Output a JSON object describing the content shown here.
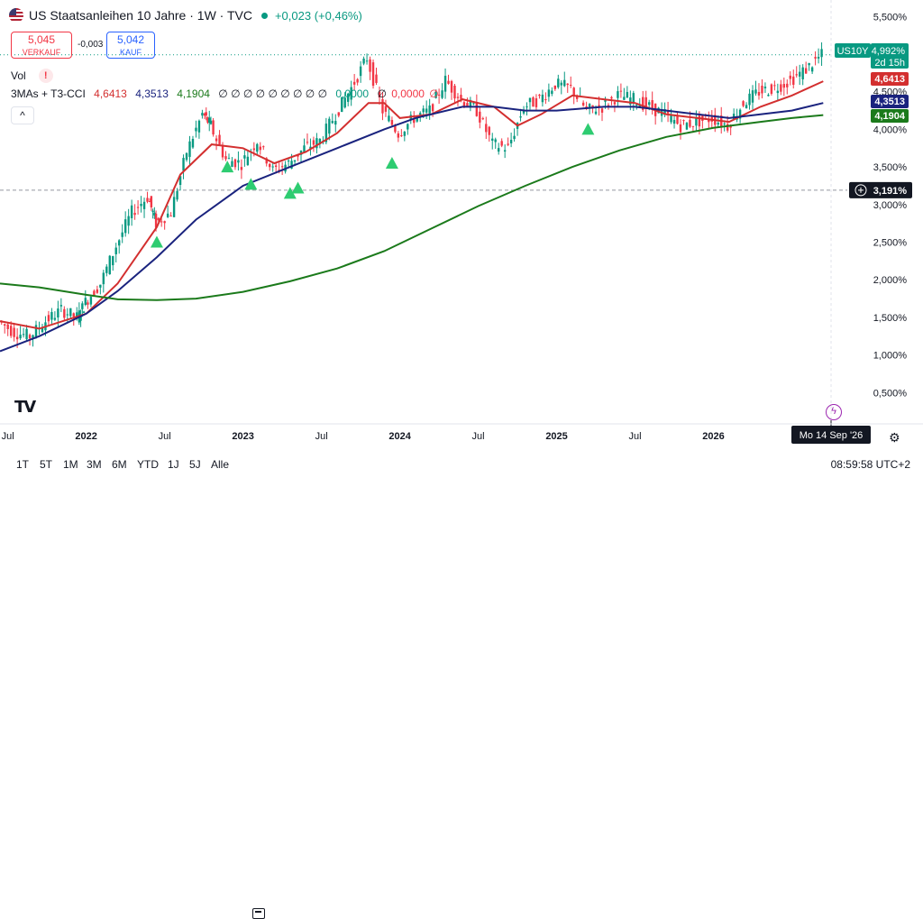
{
  "header": {
    "title": "US Staatsanleihen 10 Jahre · 1W · TVC",
    "change": "+0,023 (+0,46%)",
    "sell_value": "5,045",
    "sell_label": "VERKAUF",
    "spread": "-0,003",
    "buy_value": "5,042",
    "buy_label": "KAUF"
  },
  "volume": {
    "label": "Vol",
    "warning": "!"
  },
  "indicator": {
    "name": "3MAs + T3-CCI",
    "v1": "4,6413",
    "v2": "4,3513",
    "v3": "4,1904",
    "empties": "∅ ∅ ∅ ∅ ∅ ∅ ∅ ∅ ∅",
    "z1": "0,0000",
    "z2": "∅",
    "z3": "0,0000",
    "z4": "∅",
    "collapse": "^"
  },
  "badges": {
    "symbol": "US10Y",
    "price": "4,992%",
    "countdown": "2d 15h",
    "ma_red": "4,6413",
    "ma_blue": "4,3513",
    "ma_green": "4,1904",
    "crosshair": "3,191%",
    "date": "Mo 14 Sep '26"
  },
  "bottom": {
    "ranges": [
      "1T",
      "5T",
      "1M",
      "3M",
      "6M",
      "YTD",
      "1J",
      "5J",
      "Alle"
    ],
    "clock": "08:59:58 UTC+2"
  },
  "colors": {
    "up": "#089981",
    "down": "#f23645",
    "ma_red": "#d32f2f",
    "ma_blue": "#1a237e",
    "ma_green": "#1b7a1b",
    "marker": "#2ecc71"
  },
  "chart_data": {
    "type": "line",
    "title": "US Staatsanleihen 10 Jahre · 1W · TVC",
    "xlabel": "",
    "ylabel": "",
    "y_ticks": [
      "5,500%",
      "5,000%",
      "4,500%",
      "4,000%",
      "3,500%",
      "3,000%",
      "2,500%",
      "2,000%",
      "1,500%",
      "1,000%",
      "0,500%"
    ],
    "ylim": [
      0.3,
      5.6
    ],
    "x_ticks": [
      "Jul",
      "2022",
      "Jul",
      "2023",
      "Jul",
      "2024",
      "Jul",
      "2025",
      "Jul",
      "2026"
    ],
    "xlim": [
      2021.45,
      2026.75
    ],
    "last_price": 4.992,
    "crosshair_y": 3.191,
    "series": [
      {
        "name": "US10Y",
        "x": [
          2021.45,
          2021.55,
          2021.65,
          2021.75,
          2021.85,
          2021.95,
          2022.0,
          2022.1,
          2022.2,
          2022.3,
          2022.4,
          2022.45,
          2022.55,
          2022.65,
          2022.75,
          2022.8,
          2022.9,
          2023.0,
          2023.1,
          2023.2,
          2023.3,
          2023.4,
          2023.5,
          2023.6,
          2023.7,
          2023.8,
          2023.9,
          2024.0,
          2024.1,
          2024.2,
          2024.3,
          2024.4,
          2024.5,
          2024.6,
          2024.7,
          2024.8,
          2024.9,
          2025.0,
          2025.1,
          2025.2,
          2025.3,
          2025.4,
          2025.5,
          2025.6,
          2025.7,
          2025.8,
          2025.9,
          2026.0,
          2026.1,
          2026.2,
          2026.3,
          2026.4,
          2026.5,
          2026.6,
          2026.7
        ],
        "values": [
          1.45,
          1.3,
          1.25,
          1.45,
          1.6,
          1.5,
          1.7,
          1.95,
          2.45,
          2.9,
          3.1,
          2.75,
          2.9,
          3.7,
          4.2,
          4.05,
          3.6,
          3.55,
          3.85,
          3.45,
          3.55,
          3.75,
          3.85,
          4.2,
          4.55,
          4.95,
          4.25,
          3.95,
          4.15,
          4.25,
          4.65,
          4.4,
          4.25,
          3.8,
          3.75,
          4.3,
          4.4,
          4.6,
          4.55,
          4.25,
          4.3,
          4.45,
          4.4,
          4.3,
          4.2,
          4.05,
          4.1,
          4.15,
          4.05,
          4.35,
          4.5,
          4.55,
          4.65,
          4.8,
          4.99
        ]
      },
      {
        "name": "4,6413",
        "x": [
          2021.45,
          2021.7,
          2022.0,
          2022.2,
          2022.45,
          2022.6,
          2022.8,
          2023.0,
          2023.2,
          2023.4,
          2023.6,
          2023.8,
          2023.9,
          2024.0,
          2024.2,
          2024.4,
          2024.6,
          2024.75,
          2024.9,
          2025.1,
          2025.3,
          2025.5,
          2025.7,
          2025.9,
          2026.1,
          2026.3,
          2026.5,
          2026.7
        ],
        "values": [
          1.45,
          1.35,
          1.55,
          1.95,
          2.7,
          3.4,
          3.8,
          3.75,
          3.55,
          3.7,
          3.95,
          4.35,
          4.35,
          4.15,
          4.2,
          4.4,
          4.3,
          4.05,
          4.2,
          4.45,
          4.4,
          4.35,
          4.2,
          4.15,
          4.1,
          4.3,
          4.45,
          4.64
        ]
      },
      {
        "name": "4,3513",
        "x": [
          2021.45,
          2021.7,
          2022.0,
          2022.2,
          2022.45,
          2022.7,
          2023.0,
          2023.3,
          2023.6,
          2023.9,
          2024.1,
          2024.4,
          2024.6,
          2024.8,
          2025.0,
          2025.3,
          2025.5,
          2025.7,
          2025.9,
          2026.1,
          2026.3,
          2026.5,
          2026.7
        ],
        "values": [
          1.05,
          1.25,
          1.55,
          1.85,
          2.3,
          2.8,
          3.25,
          3.5,
          3.75,
          4.0,
          4.15,
          4.3,
          4.3,
          4.25,
          4.25,
          4.3,
          4.3,
          4.25,
          4.2,
          4.15,
          4.2,
          4.25,
          4.35
        ]
      },
      {
        "name": "4,1904",
        "x": [
          2021.45,
          2021.7,
          2022.0,
          2022.2,
          2022.45,
          2022.7,
          2023.0,
          2023.3,
          2023.6,
          2023.9,
          2024.2,
          2024.5,
          2024.8,
          2025.1,
          2025.4,
          2025.7,
          2026.0,
          2026.3,
          2026.5,
          2026.7
        ],
        "values": [
          1.95,
          1.9,
          1.8,
          1.74,
          1.73,
          1.75,
          1.84,
          1.98,
          2.15,
          2.38,
          2.68,
          2.98,
          3.25,
          3.5,
          3.72,
          3.9,
          4.02,
          4.1,
          4.15,
          4.19
        ]
      }
    ],
    "markers": {
      "x": [
        2022.45,
        2022.9,
        2023.05,
        2023.3,
        2023.35,
        2023.95,
        2025.2
      ],
      "y": [
        2.5,
        3.5,
        3.27,
        3.15,
        3.22,
        3.55,
        4.0
      ]
    }
  }
}
